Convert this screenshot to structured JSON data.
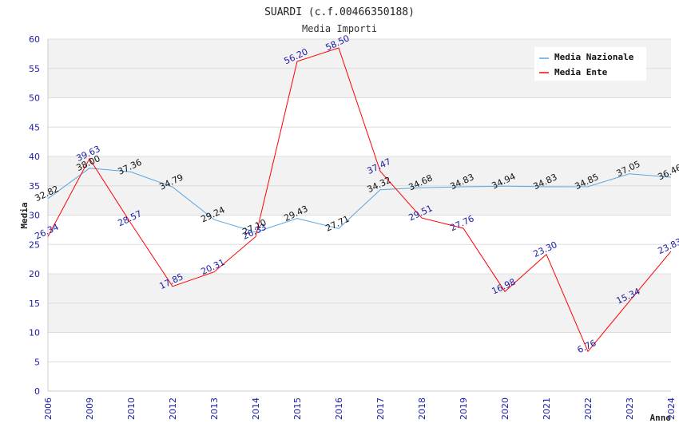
{
  "chart_data": {
    "type": "line",
    "title": "SUARDI (c.f.00466350188)",
    "subtitle": "Media Importi",
    "xlabel": "Anno",
    "ylabel": "Media",
    "ylim": [
      0,
      60
    ],
    "yticks": [
      0,
      5,
      10,
      15,
      20,
      25,
      30,
      35,
      40,
      45,
      50,
      55,
      60
    ],
    "categories": [
      "2006",
      "2009",
      "2010",
      "2012",
      "2013",
      "2014",
      "2015",
      "2016",
      "2017",
      "2018",
      "2019",
      "2020",
      "2021",
      "2022",
      "2023",
      "2024"
    ],
    "series": [
      {
        "name": "Media Nazionale",
        "color": "#5aa5e0",
        "values": [
          32.82,
          38.0,
          37.36,
          34.79,
          29.24,
          27.1,
          29.43,
          27.71,
          34.32,
          34.68,
          34.83,
          34.94,
          34.83,
          34.85,
          37.05,
          36.46
        ],
        "labels": [
          "32.82",
          "38.00",
          "37.36",
          "34.79",
          "29.24",
          "27.10",
          "29.43",
          "27.71",
          "34.32",
          "34.68",
          "34.83",
          "34.94",
          "34.83",
          "34.85",
          "37.05",
          "36.46"
        ]
      },
      {
        "name": "Media Ente",
        "color": "#ff0000",
        "values": [
          26.34,
          39.63,
          28.57,
          17.85,
          20.31,
          26.33,
          56.2,
          58.5,
          37.47,
          29.51,
          27.76,
          16.98,
          23.3,
          6.76,
          15.34,
          23.83
        ],
        "labels": [
          "26.34",
          "39.63",
          "28.57",
          "17.85",
          "20.31",
          "26.33",
          "56.20",
          "58.50",
          "37.47",
          "29.51",
          "27.76",
          "16.98",
          "23.30",
          "6.76",
          "15.34",
          "23.83"
        ]
      }
    ],
    "legend_position": "top-right",
    "band_colors": [
      "#f2f2f2",
      "#ffffff"
    ],
    "label_colors": {
      "nazionale": "#111111",
      "ente": "#1a1aa6",
      "ticks": "#1a1aa6"
    }
  }
}
